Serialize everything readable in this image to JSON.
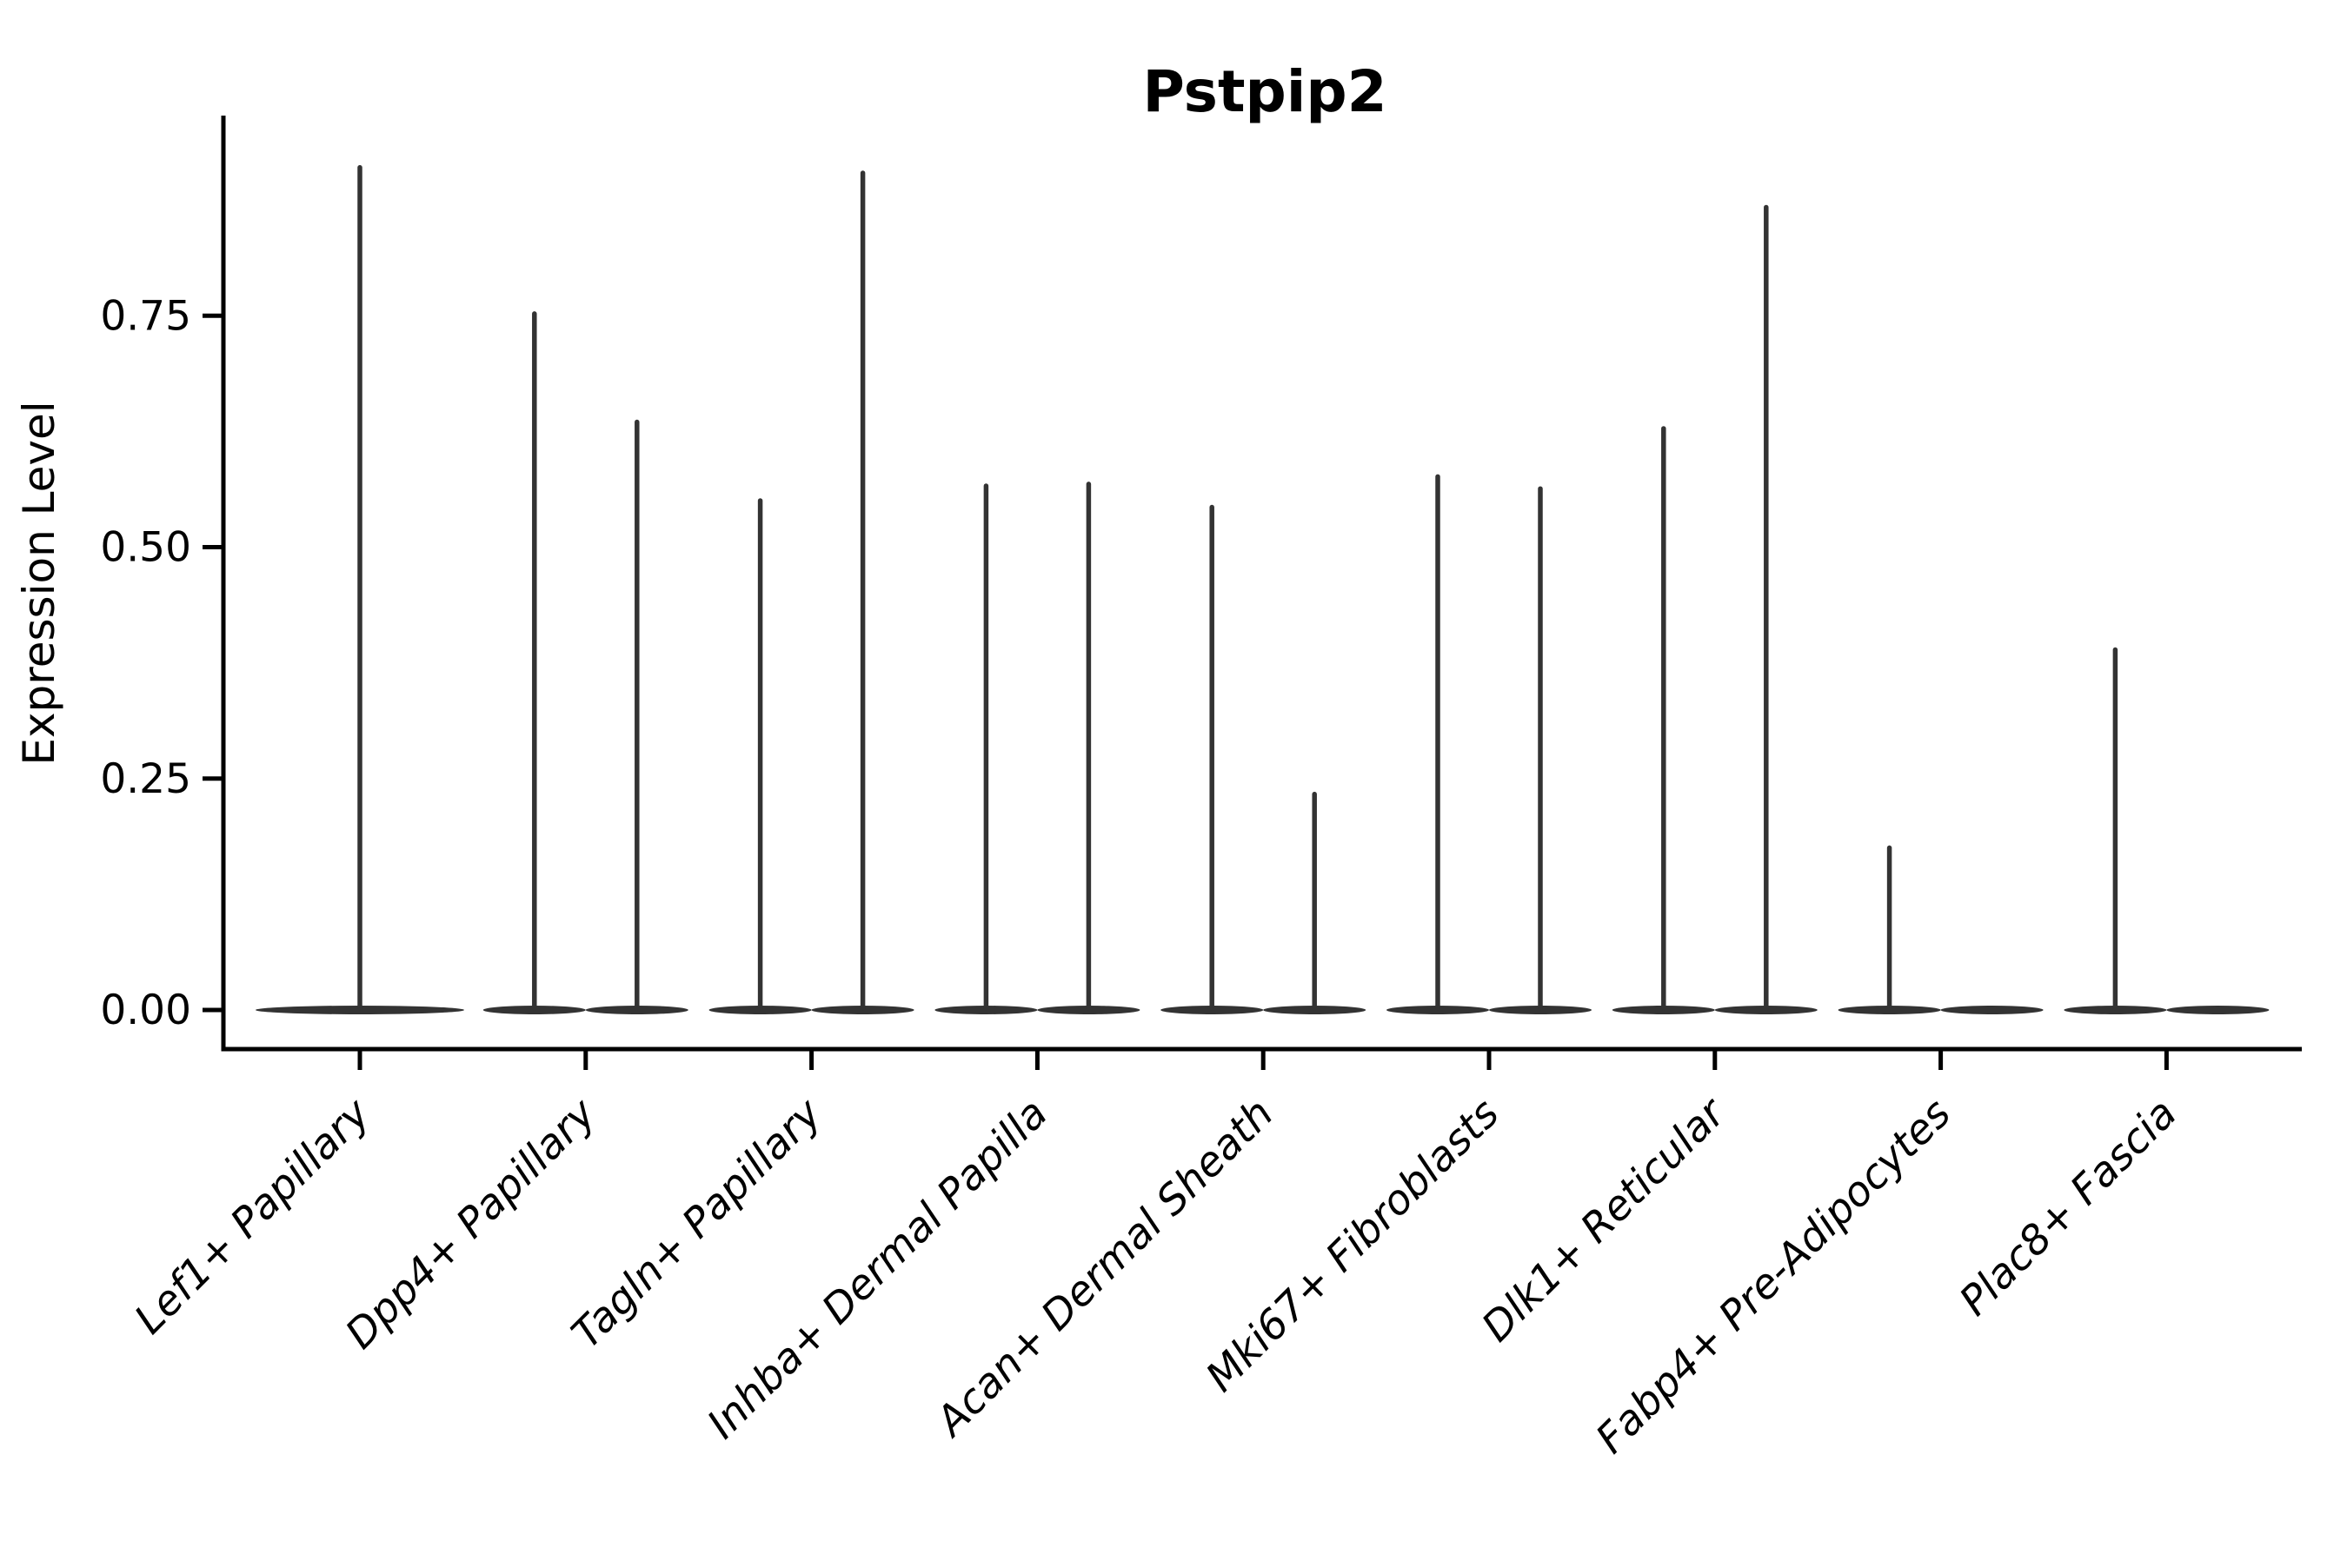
{
  "page": {
    "background": "#ffffff"
  },
  "chart_data": {
    "type": "violin",
    "title": "Pstpip2",
    "xlabel": "",
    "ylabel": "Expression Level",
    "grid": false,
    "legend": "none",
    "ink_color": "#333333",
    "axis_color": "#000000",
    "ytick_labels": [
      "0.00",
      "0.25",
      "0.50",
      "0.75"
    ],
    "ytick_values": [
      0.0,
      0.25,
      0.5,
      0.75
    ],
    "ylim": [
      -0.045,
      0.965
    ],
    "categories": [
      "Lef1+ Papillary",
      "Dpp4+ Papillary",
      "Tagln+ Papillary",
      "Inhba+ Dermal Papilla",
      "Acan+ Dermal Sheath",
      "Mki67+ Fibroblasts",
      "Dlk1+ Reticular",
      "Fabp4+ Pre-Adipocytes",
      "Plac8+ Fascia"
    ],
    "violins": [
      {
        "category": "Lef1+ Papillary",
        "groups": [
          {
            "dodge": "center",
            "max": 0.913
          }
        ]
      },
      {
        "category": "Dpp4+ Papillary",
        "groups": [
          {
            "dodge": "left",
            "max": 0.755
          },
          {
            "dodge": "right",
            "max": 0.638
          }
        ]
      },
      {
        "category": "Tagln+ Papillary",
        "groups": [
          {
            "dodge": "left",
            "max": 0.553
          },
          {
            "dodge": "right",
            "max": 0.907
          }
        ]
      },
      {
        "category": "Inhba+ Dermal Papilla",
        "groups": [
          {
            "dodge": "left",
            "max": 0.569
          },
          {
            "dodge": "right",
            "max": 0.571
          }
        ]
      },
      {
        "category": "Acan+ Dermal Sheath",
        "groups": [
          {
            "dodge": "left",
            "max": 0.546
          },
          {
            "dodge": "right",
            "max": 0.236
          }
        ]
      },
      {
        "category": "Mki67+ Fibroblasts",
        "groups": [
          {
            "dodge": "left",
            "max": 0.579
          },
          {
            "dodge": "right",
            "max": 0.566
          }
        ]
      },
      {
        "category": "Dlk1+ Reticular",
        "groups": [
          {
            "dodge": "left",
            "max": 0.631
          },
          {
            "dodge": "right",
            "max": 0.87
          }
        ]
      },
      {
        "category": "Fabp4+ Pre-Adipocytes",
        "groups": [
          {
            "dodge": "left",
            "max": 0.178
          },
          {
            "dodge": "right",
            "max": 0.0
          }
        ]
      },
      {
        "category": "Plac8+ Fascia",
        "groups": [
          {
            "dodge": "left",
            "max": 0.392
          },
          {
            "dodge": "right",
            "max": 0.0
          }
        ]
      }
    ]
  }
}
